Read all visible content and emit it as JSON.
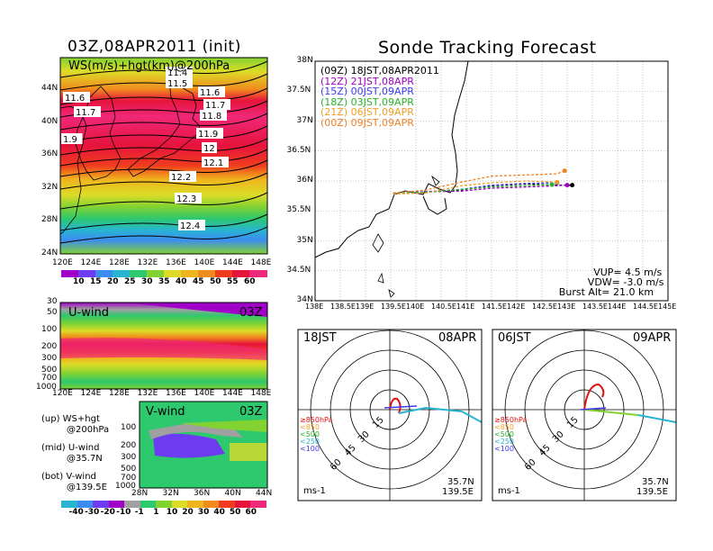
{
  "left_title": "03Z,08APR2011 (init)",
  "right_title": "Sonde Tracking Forecast",
  "chart_data": [
    {
      "id": "ws-map",
      "type": "heatmap",
      "panel_label": "WS(m/s)+hgt(km)@200hPa",
      "x_ticks": [
        "120E",
        "124E",
        "128E",
        "132E",
        "136E",
        "140E",
        "144E",
        "148E"
      ],
      "y_ticks": [
        "44N",
        "40N",
        "36N",
        "32N",
        "28N",
        "24N"
      ],
      "xlim": [
        120,
        150
      ],
      "ylim": [
        22,
        47
      ],
      "contour_labels": [
        "11.4",
        "11.5",
        "11.6",
        "11.6",
        "11.7",
        "11.7",
        "11.8",
        "11.9",
        "1.9",
        "12",
        "12.1",
        "12.2",
        "12.3",
        "12.4"
      ],
      "colorbar_ticks": [
        "10",
        "15",
        "20",
        "25",
        "30",
        "35",
        "40",
        "45",
        "50",
        "55",
        "60"
      ],
      "colorbar_colors": [
        "#a000c8",
        "#6e3cf0",
        "#3c8cf0",
        "#28b4d2",
        "#2ec86e",
        "#82d232",
        "#dcdc28",
        "#f0b41e",
        "#f08c1e",
        "#f03c1e",
        "#e6143c",
        "#f02878"
      ]
    },
    {
      "id": "u-wind",
      "type": "heatmap",
      "panel_label": "U-wind",
      "time_label": "03Z",
      "x_ticks": [
        "120E",
        "124E",
        "128E",
        "132E",
        "136E",
        "140E",
        "144E",
        "148E"
      ],
      "y_ticks": [
        "30",
        "50",
        "100",
        "200",
        "300",
        "500",
        "700",
        "1000"
      ]
    },
    {
      "id": "v-wind",
      "type": "heatmap",
      "panel_label": "V-wind",
      "time_label": "03Z",
      "x_ticks": [
        "28N",
        "32N",
        "36N",
        "40N",
        "44N"
      ],
      "y_ticks": [
        "100",
        "200",
        "300",
        "500",
        "700",
        "1000"
      ],
      "colorbar_ticks": [
        "-40",
        "-30",
        "-20",
        "-10",
        "-1",
        "1",
        "10",
        "20",
        "30",
        "40",
        "50",
        "60"
      ],
      "colorbar_colors": [
        "#28b4d2",
        "#3c8cf0",
        "#6e3cf0",
        "#a000c8",
        "#a0a0a0",
        "#2ec86e",
        "#82d232",
        "#dcdc28",
        "#f0b41e",
        "#f08c1e",
        "#f03c1e",
        "#e6143c",
        "#f02878"
      ]
    },
    {
      "id": "track-map",
      "type": "line",
      "xlim": [
        138,
        145
      ],
      "ylim": [
        34,
        38
      ],
      "x_ticks": [
        "138E",
        "138.5E",
        "139E",
        "139.5E",
        "140E",
        "140.5E",
        "141E",
        "141.5E",
        "142E",
        "142.5E",
        "143E",
        "143.5E",
        "144E",
        "144.5E",
        "145E"
      ],
      "y_ticks": [
        "38N",
        "37.5N",
        "37N",
        "36.5N",
        "36N",
        "35.5N",
        "35N",
        "34.5N",
        "34N"
      ],
      "series": [
        {
          "name": "(09Z) 18JST,08APR2011",
          "color": "#000000",
          "dash": true,
          "points": [
            [
              139.55,
              35.8
            ],
            [
              140.2,
              35.82
            ],
            [
              140.9,
              35.85
            ],
            [
              141.5,
              35.92
            ],
            [
              142.2,
              35.95
            ],
            [
              142.8,
              35.93
            ],
            [
              143.1,
              35.93
            ]
          ]
        },
        {
          "name": "(12Z) 21JST,08APR",
          "color": "#a000c8",
          "dash": true,
          "points": [
            [
              139.55,
              35.8
            ],
            [
              140.2,
              35.82
            ],
            [
              140.9,
              35.83
            ],
            [
              141.5,
              35.88
            ],
            [
              142.2,
              35.9
            ],
            [
              142.8,
              35.92
            ],
            [
              143.0,
              35.93
            ]
          ]
        },
        {
          "name": "(15Z) 00JST,09APR",
          "color": "#3c3cf0",
          "dash": true,
          "points": [
            [
              139.55,
              35.8
            ],
            [
              140.2,
              35.82
            ],
            [
              140.9,
              35.86
            ],
            [
              141.5,
              35.93
            ],
            [
              142.2,
              35.96
            ],
            [
              142.8,
              35.97
            ]
          ]
        },
        {
          "name": "(18Z) 03JST,09APR",
          "color": "#28b428",
          "dash": true,
          "points": [
            [
              139.55,
              35.8
            ],
            [
              140.2,
              35.81
            ],
            [
              140.9,
              35.86
            ],
            [
              141.5,
              35.9
            ],
            [
              142.2,
              35.92
            ],
            [
              142.7,
              35.94
            ]
          ]
        },
        {
          "name": "(21Z) 06JST,09APR",
          "color": "#f0a028",
          "dash": true,
          "points": [
            [
              139.55,
              35.78
            ],
            [
              140.2,
              35.8
            ],
            [
              140.9,
              35.92
            ],
            [
              141.5,
              35.97
            ],
            [
              142.2,
              36.0
            ],
            [
              142.8,
              35.98
            ]
          ]
        },
        {
          "name": "(00Z) 09JST,09APR",
          "color": "#f08228",
          "dash": true,
          "points": [
            [
              139.55,
              35.8
            ],
            [
              140.2,
              35.85
            ],
            [
              140.9,
              35.98
            ],
            [
              141.5,
              36.08
            ],
            [
              142.2,
              36.1
            ],
            [
              142.8,
              36.12
            ],
            [
              142.95,
              36.17
            ]
          ]
        }
      ],
      "notes": [
        "VUP= 4.5 m/s",
        "VDW= -3.0 m/s",
        "Burst Alt= 21.0 km"
      ]
    },
    {
      "id": "hodo-18jst",
      "type": "line",
      "left_label": "18JST",
      "right_label": "08APR",
      "ring_labels": [
        "15",
        "30",
        "45",
        "60"
      ],
      "unit": "ms-1",
      "position": [
        "35.7N",
        "139.5E"
      ]
    },
    {
      "id": "hodo-06jst",
      "type": "line",
      "left_label": "06JST",
      "right_label": "09APR",
      "ring_labels": [
        "15",
        "30",
        "45",
        "60"
      ],
      "unit": "ms-1",
      "position": [
        "35.7N",
        "139.5E"
      ]
    }
  ],
  "level_legend": [
    {
      "label": "≥850hPa",
      "color": "#e01010"
    },
    {
      "label": "<850",
      "color": "#f0a028"
    },
    {
      "label": "<500",
      "color": "#28b428"
    },
    {
      "label": "<250",
      "color": "#28b4d2"
    },
    {
      "label": "<100",
      "color": "#3c3cf0"
    }
  ],
  "left_legend": [
    {
      "line1": "(up) WS+hgt",
      "line2": "@200hPa"
    },
    {
      "line1": "(mid) U-wind",
      "line2": "@35.7N"
    },
    {
      "line1": "(bot) V-wind",
      "line2": "@139.5E"
    }
  ]
}
